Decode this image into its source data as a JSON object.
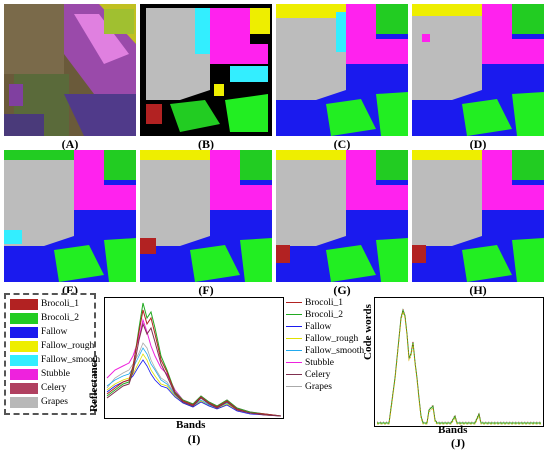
{
  "panels": [
    {
      "label": "(A)"
    },
    {
      "label": "(B)"
    },
    {
      "label": "(C)"
    },
    {
      "label": "(D)"
    },
    {
      "label": "(E)"
    },
    {
      "label": "(F)"
    },
    {
      "label": "(G)"
    },
    {
      "label": "(H)"
    }
  ],
  "classes": [
    {
      "name": "Brocoli_1",
      "color": "#b22222"
    },
    {
      "name": "Brocoli_2",
      "color": "#22cc22"
    },
    {
      "name": "Fallow",
      "color": "#1a1aee"
    },
    {
      "name": "Fallow_rough",
      "color": "#eeee00"
    },
    {
      "name": "Fallow_smooth",
      "color": "#33eeff"
    },
    {
      "name": "Stubble",
      "color": "#ee22dd"
    },
    {
      "name": "Celery",
      "color": "#b04060"
    },
    {
      "name": "Grapes",
      "color": "#b8b8b8"
    }
  ],
  "spectral_plot": {
    "caption": "(I)",
    "xlabel": "Bands",
    "ylabel": "Reflectance",
    "legend": [
      {
        "name": "Brocoli_1",
        "color": "#b22222"
      },
      {
        "name": "Brocoli_2",
        "color": "#22aa22"
      },
      {
        "name": "Fallow",
        "color": "#1a1aee"
      },
      {
        "name": "Fallow_rough",
        "color": "#e0e000"
      },
      {
        "name": "Fallow_smooth",
        "color": "#22aaee"
      },
      {
        "name": "Stubble",
        "color": "#ee22dd"
      },
      {
        "name": "Celery",
        "color": "#803050"
      },
      {
        "name": "Grapes",
        "color": "#aaaaaa"
      }
    ]
  },
  "code_plot": {
    "caption": "(J)",
    "xlabel": "Bands",
    "ylabel": "Code words"
  }
}
